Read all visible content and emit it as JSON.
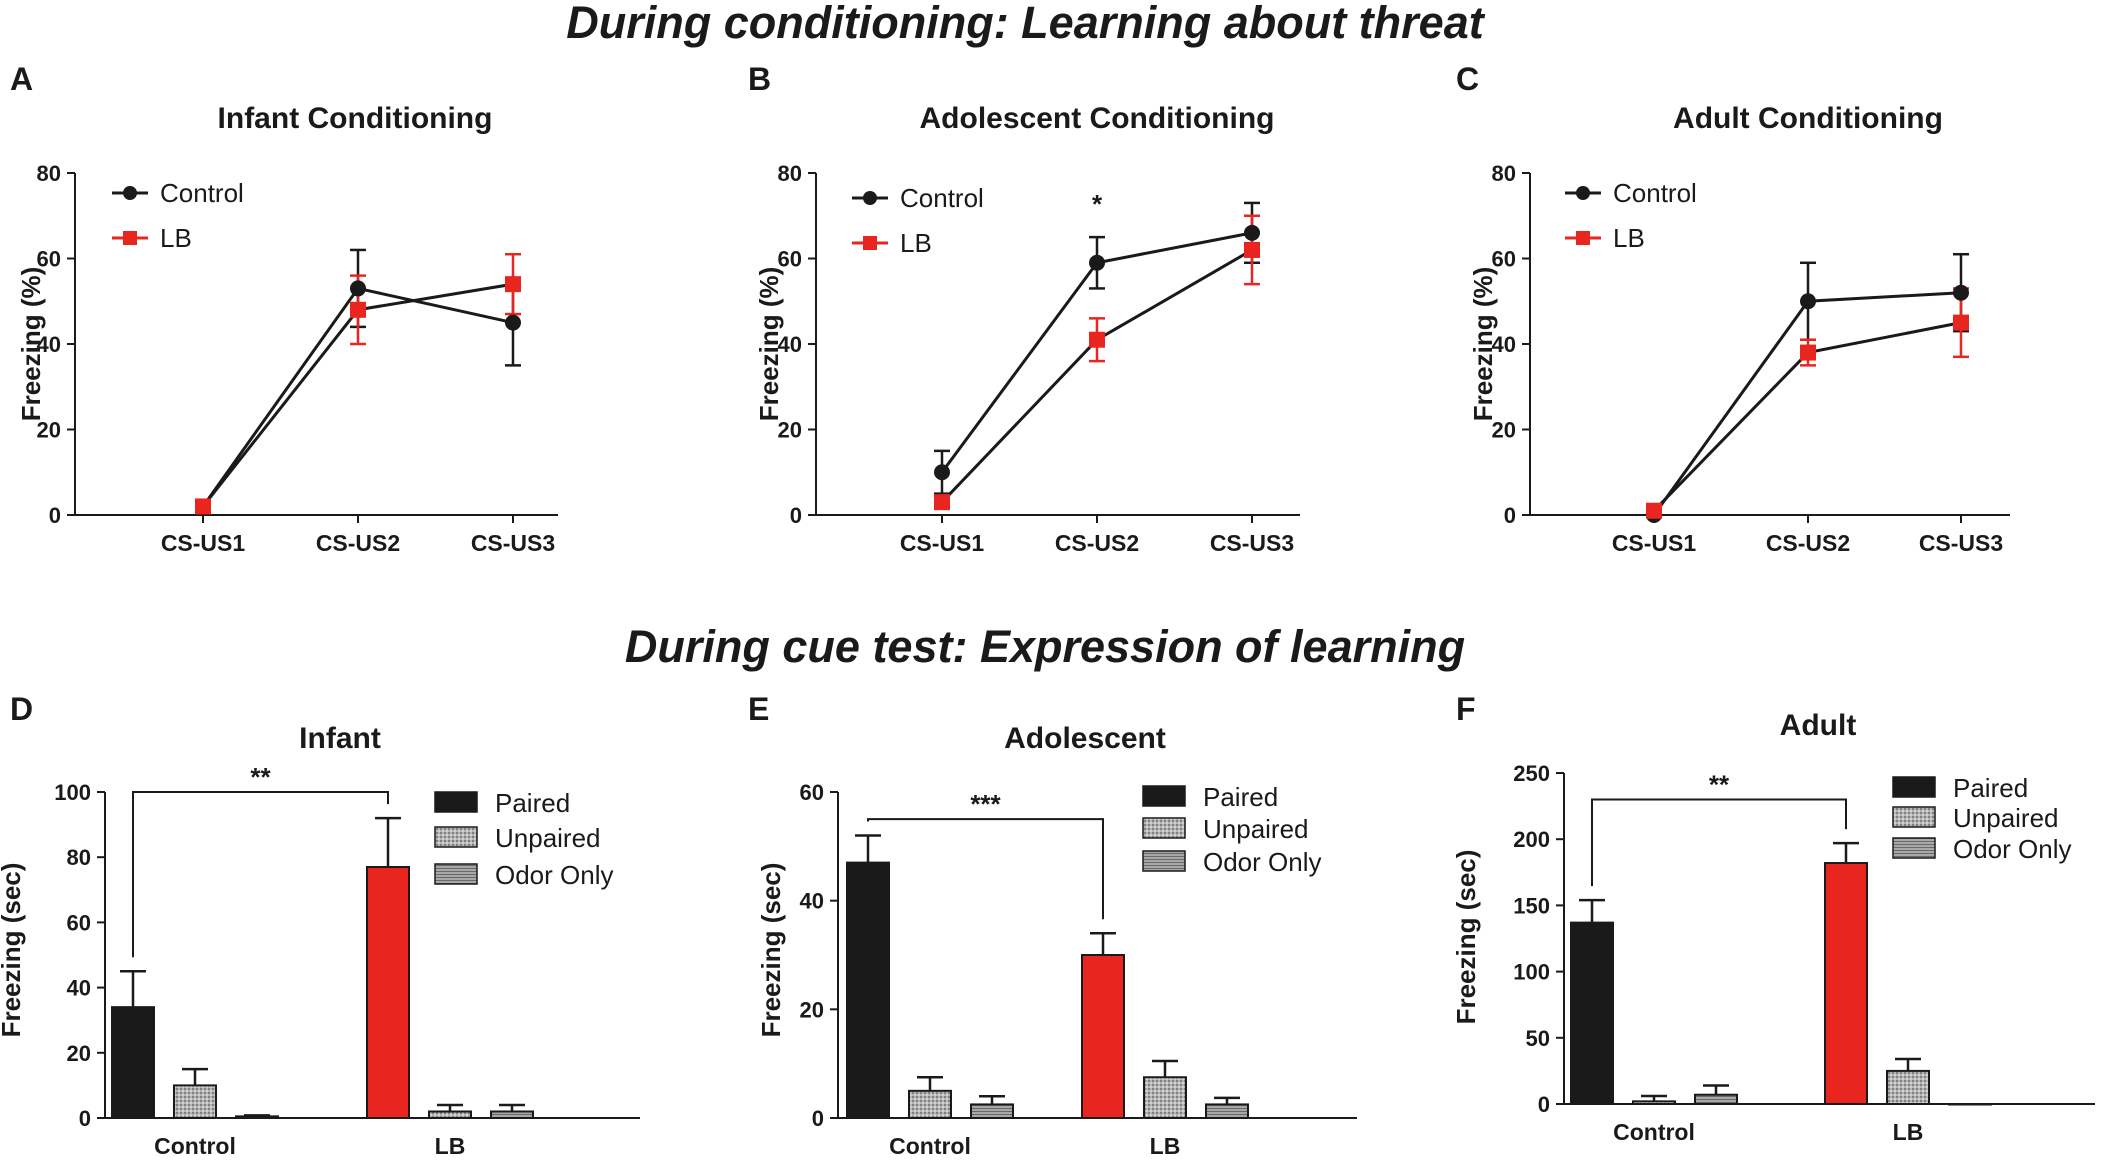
{
  "section_titles": {
    "top": "During conditioning: Learning about threat",
    "bottom": "During cue test: Expression of learning"
  },
  "colors": {
    "control": "#1a1a1a",
    "lb": "#e8261f",
    "unpaired": "#a9a9a9",
    "odor_only": "#a6a6a6"
  },
  "chart_data": [
    {
      "panel": "A",
      "type": "line",
      "title": "Infant Conditioning",
      "xlabel": "",
      "ylabel": "Freezing (%)",
      "ylim": [
        0,
        80
      ],
      "yticks": [
        0,
        20,
        40,
        60,
        80
      ],
      "categories": [
        "CS-US1",
        "CS-US2",
        "CS-US3"
      ],
      "series": [
        {
          "name": "Control",
          "values": [
            2,
            53,
            45
          ],
          "errors": [
            1,
            9,
            10
          ]
        },
        {
          "name": "LB",
          "values": [
            2,
            48,
            54
          ],
          "errors": [
            1,
            8,
            7
          ]
        }
      ],
      "annotations": []
    },
    {
      "panel": "B",
      "type": "line",
      "title": "Adolescent Conditioning",
      "xlabel": "",
      "ylabel": "Freezing (%)",
      "ylim": [
        0,
        80
      ],
      "yticks": [
        0,
        20,
        40,
        60,
        80
      ],
      "categories": [
        "CS-US1",
        "CS-US2",
        "CS-US3"
      ],
      "series": [
        {
          "name": "Control",
          "values": [
            10,
            59,
            66
          ],
          "errors": [
            5,
            6,
            7
          ]
        },
        {
          "name": "LB",
          "values": [
            3,
            41,
            62
          ],
          "errors": [
            1,
            5,
            8
          ]
        }
      ],
      "annotations": [
        {
          "text": "*",
          "category": "CS-US2",
          "y": 73
        }
      ]
    },
    {
      "panel": "C",
      "type": "line",
      "title": "Adult Conditioning",
      "xlabel": "",
      "ylabel": "Freezing (%)",
      "ylim": [
        0,
        80
      ],
      "yticks": [
        0,
        20,
        40,
        60,
        80
      ],
      "categories": [
        "CS-US1",
        "CS-US2",
        "CS-US3"
      ],
      "series": [
        {
          "name": "Control",
          "values": [
            0,
            50,
            52
          ],
          "errors": [
            0,
            9,
            9
          ]
        },
        {
          "name": "LB",
          "values": [
            1,
            38,
            45
          ],
          "errors": [
            1,
            3,
            8
          ]
        }
      ],
      "annotations": []
    },
    {
      "panel": "D",
      "type": "bar",
      "title": "Infant",
      "xlabel": "",
      "ylabel": "Freezing (sec)",
      "ylim": [
        0,
        100
      ],
      "yticks": [
        0,
        20,
        40,
        60,
        80,
        100
      ],
      "categories": [
        "Control",
        "LB"
      ],
      "series": [
        {
          "name": "Paired",
          "values": [
            34,
            77
          ],
          "errors": [
            11,
            15
          ]
        },
        {
          "name": "Unpaired",
          "values": [
            10,
            2
          ],
          "errors": [
            5,
            2
          ]
        },
        {
          "name": "Odor Only",
          "values": [
            0.5,
            2
          ],
          "errors": [
            0.3,
            2
          ]
        }
      ],
      "significance": {
        "text": "**",
        "y": 100
      }
    },
    {
      "panel": "E",
      "type": "bar",
      "title": "Adolescent",
      "xlabel": "",
      "ylabel": "Freezing (sec)",
      "ylim": [
        0,
        60
      ],
      "yticks": [
        0,
        20,
        40,
        60
      ],
      "categories": [
        "Control",
        "LB"
      ],
      "series": [
        {
          "name": "Paired",
          "values": [
            47,
            30
          ],
          "errors": [
            5,
            4
          ]
        },
        {
          "name": "Unpaired",
          "values": [
            5,
            7.5
          ],
          "errors": [
            2.5,
            3
          ]
        },
        {
          "name": "Odor Only",
          "values": [
            2.5,
            2.5
          ],
          "errors": [
            1.5,
            1.2
          ]
        }
      ],
      "significance": {
        "text": "***",
        "y": 55
      }
    },
    {
      "panel": "F",
      "type": "bar",
      "title": "Adult",
      "xlabel": "",
      "ylabel": "Freezing (sec)",
      "ylim": [
        0,
        250
      ],
      "yticks": [
        0,
        50,
        100,
        150,
        200,
        250
      ],
      "categories": [
        "Control",
        "LB"
      ],
      "series": [
        {
          "name": "Paired",
          "values": [
            137,
            182
          ],
          "errors": [
            17,
            15
          ]
        },
        {
          "name": "Unpaired",
          "values": [
            2,
            25
          ],
          "errors": [
            4,
            9
          ]
        },
        {
          "name": "Odor Only",
          "values": [
            7,
            0
          ],
          "errors": [
            7,
            0
          ]
        }
      ],
      "significance": {
        "text": "**",
        "y": 230
      }
    }
  ]
}
